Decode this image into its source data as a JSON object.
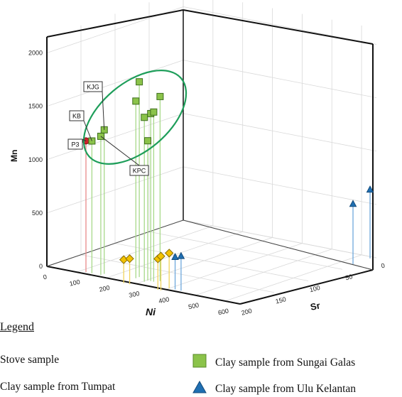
{
  "chart_data": {
    "type": "scatter",
    "subtype": "3d-scatter-with-droplines",
    "title": "",
    "axes": {
      "x": {
        "label": "Ni",
        "ticks": [
          0,
          100,
          200,
          300,
          400,
          500,
          600
        ]
      },
      "y": {
        "label": "Sr",
        "ticks": [
          200,
          150,
          100,
          50,
          0
        ],
        "reversed": true
      },
      "z": {
        "label": "Mn",
        "ticks": [
          0,
          500,
          1000,
          1500,
          2000
        ]
      }
    },
    "series": [
      {
        "name": "Stove sample",
        "marker": "circle",
        "color": "#d0202a",
        "points": [
          {
            "x": 120,
            "y": 195,
            "z": 1230
          }
        ]
      },
      {
        "name": "Clay sample from Tumpat",
        "marker": "diamond",
        "color": "#f2c200",
        "points": [
          {
            "x": 270,
            "y": 205,
            "z": 220
          },
          {
            "x": 290,
            "y": 205,
            "z": 240
          },
          {
            "x": 385,
            "y": 205,
            "z": 290
          },
          {
            "x": 395,
            "y": 205,
            "z": 320
          },
          {
            "x": 400,
            "y": 195,
            "z": 330
          }
        ]
      },
      {
        "name": "Clay sample from Sungai Galas",
        "marker": "square",
        "color": "#8bc34a",
        "points": [
          {
            "x": 140,
            "y": 195,
            "z": 1240
          },
          {
            "x": 170,
            "y": 195,
            "z": 1300
          },
          {
            "x": 170,
            "y": 190,
            "z": 1350
          },
          {
            "x": 265,
            "y": 185,
            "z": 1660
          },
          {
            "x": 265,
            "y": 180,
            "z": 1830
          },
          {
            "x": 305,
            "y": 190,
            "z": 1540
          },
          {
            "x": 305,
            "y": 185,
            "z": 1310
          },
          {
            "x": 315,
            "y": 185,
            "z": 1570
          },
          {
            "x": 325,
            "y": 185,
            "z": 1590
          },
          {
            "x": 335,
            "y": 180,
            "z": 1730
          }
        ]
      },
      {
        "name": "Clay sample from Ulu Kelantan",
        "marker": "triangle",
        "color": "#1f6fb2",
        "points": [
          {
            "x": 420,
            "y": 195,
            "z": 300
          },
          {
            "x": 440,
            "y": 195,
            "z": 320
          },
          {
            "x": 640,
            "y": 30,
            "z": 560
          },
          {
            "x": 640,
            "y": 5,
            "z": 640
          }
        ]
      }
    ],
    "callouts": [
      {
        "label": "KJG"
      },
      {
        "label": "KB"
      },
      {
        "label": "P3"
      },
      {
        "label": "KPC"
      }
    ],
    "legend": {
      "title": "Legend",
      "placement": "bottom",
      "entries": [
        {
          "label": "Stove sample",
          "marker": "circle",
          "color": "#d0202a"
        },
        {
          "label": "Clay sample from Sungai Galas",
          "marker": "square",
          "color": "#8bc34a"
        },
        {
          "label": "Clay sample from Tumpat",
          "marker": "diamond",
          "color": "#f2c200"
        },
        {
          "label": "Clay sample from Ulu Kelantan",
          "marker": "triangle",
          "color": "#1f6fb2"
        }
      ]
    }
  }
}
